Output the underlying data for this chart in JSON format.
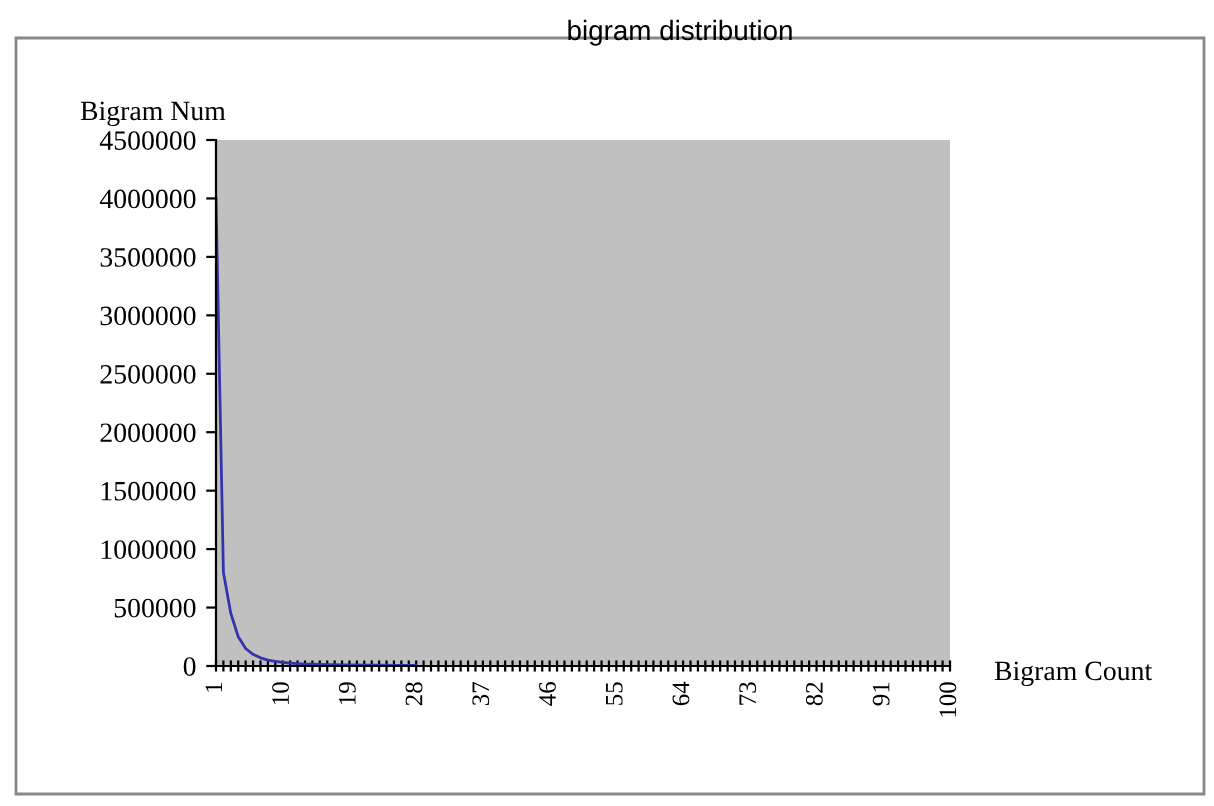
{
  "chart_data": {
    "type": "line",
    "title": "bigram distribution",
    "xlabel": "Bigram Count",
    "ylabel": "Bigram Num",
    "categories": [
      "1",
      null,
      null,
      null,
      null,
      null,
      null,
      null,
      null,
      "10",
      null,
      null,
      null,
      null,
      null,
      null,
      null,
      null,
      "19",
      null,
      null,
      null,
      null,
      null,
      null,
      null,
      null,
      "28",
      null,
      null,
      null,
      null,
      null,
      null,
      null,
      null,
      "37",
      null,
      null,
      null,
      null,
      null,
      null,
      null,
      null,
      "46",
      null,
      null,
      null,
      null,
      null,
      null,
      null,
      null,
      "55",
      null,
      null,
      null,
      null,
      null,
      null,
      null,
      null,
      "64",
      null,
      null,
      null,
      null,
      null,
      null,
      null,
      null,
      "73",
      null,
      null,
      null,
      null,
      null,
      null,
      null,
      null,
      "82",
      null,
      null,
      null,
      null,
      null,
      null,
      null,
      null,
      "91",
      null,
      null,
      null,
      null,
      null,
      null,
      null,
      null,
      "100"
    ],
    "series": [
      {
        "color": "#3333aa",
        "values": [
          4000000,
          800000,
          450000,
          250000,
          150000,
          100000,
          70000,
          50000,
          40000,
          30000,
          25000,
          20000,
          17000,
          15000,
          13000,
          12000,
          11000,
          10000,
          9000,
          8500,
          8000,
          7500,
          7000,
          6500,
          6000,
          5500,
          5000,
          5000,
          null,
          null,
          null,
          null,
          null,
          null,
          null,
          null,
          null,
          null,
          null,
          null,
          null,
          null,
          null,
          null,
          null,
          null,
          null,
          null,
          null,
          null,
          null,
          null,
          null,
          null,
          null,
          null,
          null,
          null,
          null,
          null,
          null,
          null,
          null,
          null,
          null,
          null,
          null,
          null,
          null,
          null,
          null,
          null,
          null,
          null,
          null,
          null,
          null,
          null,
          null,
          null,
          null,
          null,
          null,
          null,
          null,
          null,
          null,
          null,
          null,
          null,
          null,
          null,
          null,
          null,
          null,
          null,
          null,
          null,
          null,
          null
        ]
      }
    ],
    "ylim": [
      0,
      4500000
    ],
    "yticks": [
      0,
      500000,
      1000000,
      1500000,
      2000000,
      2500000,
      3000000,
      3500000,
      4000000,
      4500000
    ],
    "grid": false,
    "legend": false,
    "marker": "none",
    "line_style": "solid"
  }
}
